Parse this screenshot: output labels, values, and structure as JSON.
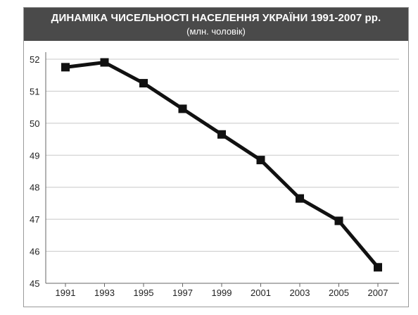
{
  "chart_data": {
    "type": "line",
    "title": "ДИНАМІКА ЧИСЕЛЬНОСТІ НАСЕЛЕННЯ УКРАЇНИ 1991-2007 рр.",
    "subtitle": "(млн. чоловік)",
    "xlabel": "",
    "ylabel": "",
    "x": [
      "1991",
      "1993",
      "1995",
      "1997",
      "1999",
      "2001",
      "2003",
      "2005",
      "2007"
    ],
    "series": [
      {
        "values": [
          51.75,
          51.9,
          51.25,
          50.45,
          49.65,
          48.85,
          47.65,
          46.95,
          45.5
        ]
      }
    ],
    "ylim": [
      45,
      52
    ],
    "yticks": [
      45,
      46,
      47,
      48,
      49,
      50,
      51,
      52
    ],
    "grid": true,
    "legend": "none",
    "colors": {
      "header_bg": "#4a4a4a",
      "line": "#111111",
      "grid": "#c8c8c8",
      "axis": "#666666"
    }
  }
}
